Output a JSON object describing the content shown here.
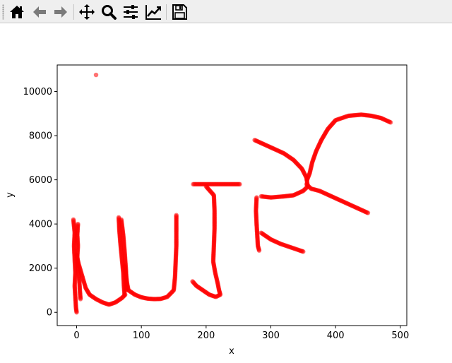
{
  "toolbar": {
    "buttons": [
      {
        "name": "home-button",
        "icon": "home-icon"
      },
      {
        "name": "back-button",
        "icon": "arrow-left-icon"
      },
      {
        "name": "forward-button",
        "icon": "arrow-right-icon"
      },
      {
        "name": "pan-button",
        "icon": "move-icon"
      },
      {
        "name": "zoom-button",
        "icon": "magnifier-icon"
      },
      {
        "name": "configure-subplots-button",
        "icon": "sliders-icon"
      },
      {
        "name": "edit-axes-button",
        "icon": "line-chart-icon"
      },
      {
        "name": "save-button",
        "icon": "floppy-disk-icon"
      }
    ]
  },
  "chart_data": {
    "type": "scatter",
    "xlabel": "x",
    "ylabel": "y",
    "xlim": [
      -30,
      510
    ],
    "ylim": [
      -600,
      11200
    ],
    "xticks": [
      0,
      100,
      200,
      300,
      400,
      500
    ],
    "yticks": [
      0,
      2000,
      4000,
      6000,
      8000,
      10000
    ],
    "grid": false,
    "color": "#ff0000",
    "outlier": [
      30,
      10750
    ],
    "strokes": [
      [
        [
          -5,
          4200
        ],
        [
          -3,
          3600
        ],
        [
          -4,
          3000
        ],
        [
          -3,
          2400
        ],
        [
          -2,
          1800
        ],
        [
          -3,
          1200
        ],
        [
          -2,
          700
        ],
        [
          -1,
          200
        ],
        [
          0,
          0
        ]
      ],
      [
        [
          2,
          4000
        ],
        [
          1,
          3500
        ],
        [
          2,
          3000
        ],
        [
          1,
          2500
        ],
        [
          2,
          2000
        ],
        [
          4,
          1500
        ],
        [
          5,
          1000
        ],
        [
          6,
          600
        ]
      ],
      [
        [
          0,
          2600
        ],
        [
          3,
          2200
        ],
        [
          6,
          1900
        ],
        [
          10,
          1500
        ],
        [
          14,
          1100
        ],
        [
          20,
          800
        ],
        [
          30,
          600
        ],
        [
          40,
          450
        ],
        [
          50,
          350
        ],
        [
          60,
          450
        ],
        [
          70,
          650
        ],
        [
          75,
          800
        ]
      ],
      [
        [
          65,
          4300
        ],
        [
          66,
          3700
        ],
        [
          68,
          3000
        ],
        [
          70,
          2400
        ],
        [
          72,
          1800
        ],
        [
          73,
          1200
        ],
        [
          74,
          800
        ]
      ],
      [
        [
          69,
          4200
        ],
        [
          72,
          3500
        ],
        [
          74,
          2800
        ],
        [
          76,
          2000
        ],
        [
          77,
          1400
        ],
        [
          77,
          1000
        ]
      ],
      [
        [
          74,
          2100
        ],
        [
          76,
          1700
        ],
        [
          78,
          1300
        ],
        [
          80,
          1000
        ],
        [
          90,
          800
        ],
        [
          100,
          680
        ],
        [
          110,
          620
        ],
        [
          120,
          600
        ],
        [
          130,
          610
        ],
        [
          140,
          700
        ],
        [
          150,
          1000
        ],
        [
          152,
          1600
        ],
        [
          153,
          2300
        ],
        [
          154,
          3000
        ],
        [
          154,
          3700
        ],
        [
          154,
          4400
        ]
      ],
      [
        [
          180,
          5800
        ],
        [
          200,
          5800
        ],
        [
          220,
          5800
        ],
        [
          240,
          5800
        ],
        [
          252,
          5800
        ]
      ],
      [
        [
          200,
          5700
        ],
        [
          212,
          5300
        ],
        [
          213,
          4600
        ],
        [
          213,
          3800
        ],
        [
          212,
          3000
        ],
        [
          211,
          2300
        ],
        [
          214,
          1800
        ],
        [
          218,
          1300
        ],
        [
          220,
          1000
        ],
        [
          222,
          800
        ],
        [
          215,
          700
        ],
        [
          205,
          800
        ],
        [
          195,
          1000
        ],
        [
          185,
          1200
        ],
        [
          179,
          1400
        ]
      ],
      [
        [
          275,
          7800
        ],
        [
          290,
          7600
        ],
        [
          305,
          7400
        ],
        [
          320,
          7200
        ],
        [
          335,
          6900
        ],
        [
          348,
          6500
        ],
        [
          355,
          6100
        ],
        [
          357,
          5700
        ],
        [
          350,
          5500
        ],
        [
          335,
          5300
        ],
        [
          320,
          5250
        ],
        [
          300,
          5200
        ],
        [
          285,
          5250
        ]
      ],
      [
        [
          278,
          5200
        ],
        [
          277,
          4600
        ],
        [
          278,
          4000
        ],
        [
          279,
          3500
        ],
        [
          280,
          3000
        ],
        [
          282,
          2800
        ]
      ],
      [
        [
          285,
          3600
        ],
        [
          300,
          3300
        ],
        [
          315,
          3100
        ],
        [
          330,
          2950
        ],
        [
          345,
          2800
        ],
        [
          350,
          2750
        ]
      ],
      [
        [
          355,
          5800
        ],
        [
          362,
          5600
        ],
        [
          375,
          5500
        ],
        [
          390,
          5300
        ],
        [
          405,
          5100
        ],
        [
          420,
          4900
        ],
        [
          435,
          4700
        ],
        [
          450,
          4500
        ]
      ],
      [
        [
          356,
          6000
        ],
        [
          360,
          6300
        ],
        [
          364,
          6800
        ],
        [
          370,
          7300
        ],
        [
          378,
          7800
        ],
        [
          388,
          8300
        ],
        [
          400,
          8700
        ],
        [
          420,
          8900
        ],
        [
          440,
          8950
        ],
        [
          455,
          8900
        ],
        [
          470,
          8800
        ],
        [
          485,
          8600
        ]
      ]
    ]
  }
}
